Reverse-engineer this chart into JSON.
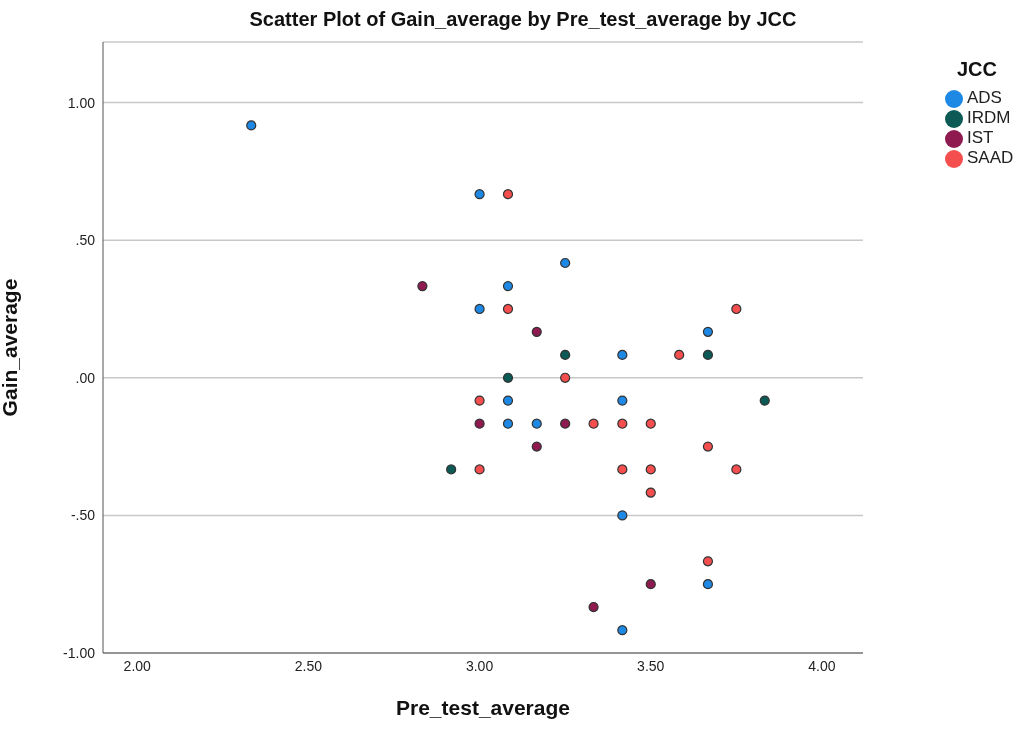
{
  "chart_data": {
    "type": "scatter",
    "title": "Scatter Plot of Gain_average by Pre_test_average by JCC",
    "xlabel": "Pre_test_average",
    "ylabel": "Gain_average",
    "legend_title": "JCC",
    "legend": "top right",
    "grid": "y",
    "marker": "circle",
    "xlim": [
      1.9,
      4.12
    ],
    "ylim": [
      -1,
      1.22
    ],
    "xticks": [
      {
        "value": 2,
        "label": "2.00"
      },
      {
        "value": 2.5,
        "label": "2.50"
      },
      {
        "value": 3,
        "label": "3.00"
      },
      {
        "value": 3.5,
        "label": "3.50"
      },
      {
        "value": 4,
        "label": "4.00"
      }
    ],
    "yticks": [
      {
        "value": -1,
        "label": "-1.00"
      },
      {
        "value": -0.5,
        "label": "-.50"
      },
      {
        "value": 0,
        "label": ".00"
      },
      {
        "value": 0.5,
        "label": ".50"
      },
      {
        "value": 1,
        "label": "1.00"
      }
    ],
    "series": [
      {
        "name": "ADS",
        "color": "#1e88e5",
        "x": [
          2.333,
          3.0,
          3.0,
          3.083,
          3.083,
          3.083,
          3.167,
          3.25,
          3.417,
          3.417,
          3.417,
          3.417,
          3.667,
          3.667
        ],
        "values": [
          0.917,
          0.667,
          0.25,
          0.333,
          -0.083,
          -0.167,
          -0.167,
          0.417,
          0.083,
          -0.083,
          -0.5,
          -0.917,
          0.167,
          -0.75
        ]
      },
      {
        "name": "IRDM",
        "color": "#0b5a55",
        "x": [
          2.917,
          3.083,
          3.25,
          3.667,
          3.833
        ],
        "values": [
          -0.333,
          0,
          0.083,
          0.083,
          -0.083
        ]
      },
      {
        "name": "IST",
        "color": "#8e1a50",
        "x": [
          2.833,
          3.0,
          3.167,
          3.167,
          3.25,
          3.5,
          3.333
        ],
        "values": [
          0.333,
          -0.167,
          0.167,
          -0.25,
          -0.167,
          -0.75,
          -0.833
        ]
      },
      {
        "name": "SAAD",
        "color": "#f44e4e",
        "x": [
          3.083,
          3.083,
          3.0,
          3.0,
          3.25,
          3.333,
          3.417,
          3.5,
          3.417,
          3.5,
          3.5,
          3.583,
          3.667,
          3.667,
          3.75,
          3.75
        ],
        "values": [
          0.667,
          0.25,
          -0.083,
          -0.333,
          0,
          -0.167,
          -0.167,
          -0.167,
          -0.333,
          -0.333,
          -0.417,
          0.083,
          -0.25,
          -0.667,
          0.25,
          -0.333
        ]
      }
    ]
  }
}
